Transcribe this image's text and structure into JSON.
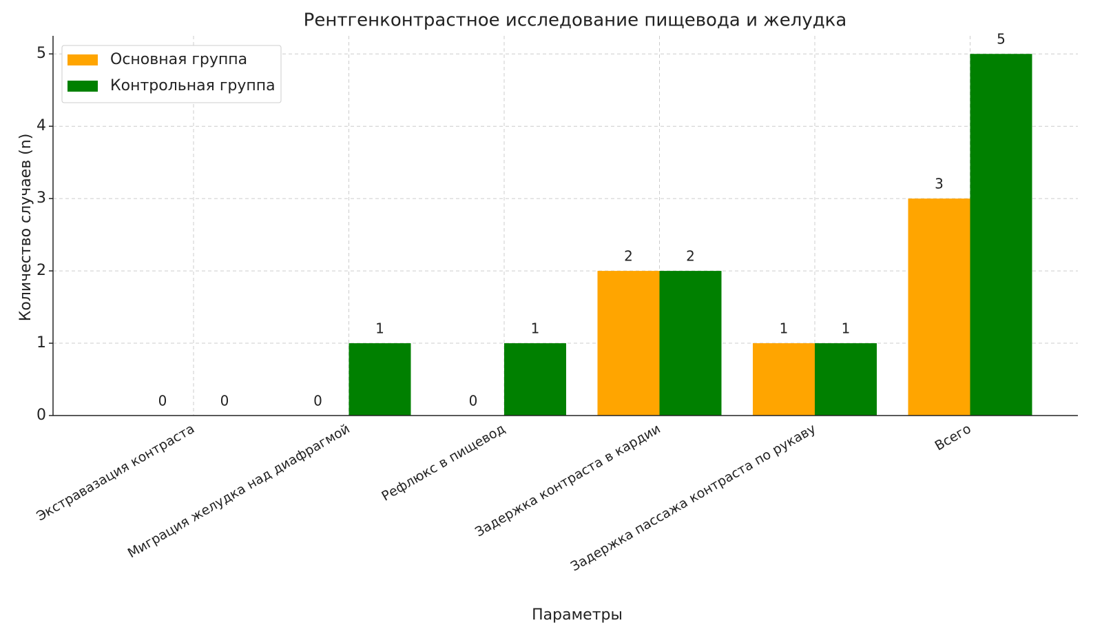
{
  "chart_data": {
    "type": "bar",
    "title": "Рентгенконтрастное исследование пищевода и желудка",
    "x_label": "Параметры",
    "y_label": "Количество случаев (n)",
    "categories": [
      "Экстравазация контраста",
      "Миграция желудка над диафрагмой",
      "Рефлюкс в пищевод",
      "Задержка контраста в кардии",
      "Задержка пассажа контраста по рукаву",
      "Всего"
    ],
    "series": [
      {
        "name": "Основная группа",
        "color": "#ffa500",
        "values": [
          0,
          0,
          0,
          2,
          1,
          3
        ]
      },
      {
        "name": "Контрольная группа",
        "color": "#008000",
        "values": [
          0,
          1,
          1,
          2,
          1,
          5
        ]
      }
    ],
    "ylim": [
      0,
      5.25
    ],
    "yticks": [
      0,
      1,
      2,
      3,
      4,
      5
    ],
    "grid": true,
    "legend": "upper-left"
  }
}
